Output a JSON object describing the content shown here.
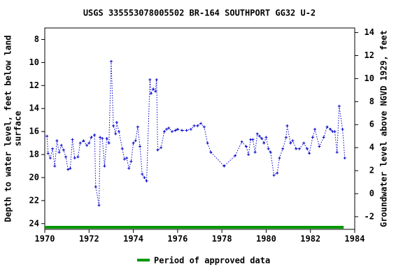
{
  "chart_data": {
    "type": "line",
    "title": "USGS 335553078005502 BR-164 SOUTHPORT GG32 U-2",
    "ylabel": [
      "Depth to water level, feet below land",
      "surface"
    ],
    "y2label": "Groundwater level above NGVD 1929, feet",
    "x": [
      1970.1,
      1970.15,
      1970.25,
      1970.35,
      1970.45,
      1970.55,
      1970.65,
      1970.75,
      1970.85,
      1970.95,
      1971.05,
      1971.15,
      1971.25,
      1971.35,
      1971.5,
      1971.6,
      1971.75,
      1971.9,
      1972.0,
      1972.1,
      1972.25,
      1972.3,
      1972.45,
      1972.5,
      1972.6,
      1972.7,
      1972.8,
      1972.9,
      1973.0,
      1973.1,
      1973.2,
      1973.25,
      1973.35,
      1973.5,
      1973.6,
      1973.7,
      1973.8,
      1973.9,
      1974.0,
      1974.1,
      1974.2,
      1974.3,
      1974.4,
      1974.5,
      1974.6,
      1974.75,
      1974.8,
      1974.9,
      1975.0,
      1975.05,
      1975.1,
      1975.25,
      1975.4,
      1975.5,
      1975.6,
      1975.75,
      1975.9,
      1976.0,
      1976.2,
      1976.4,
      1976.6,
      1976.75,
      1976.9,
      1977.05,
      1977.2,
      1977.35,
      1977.5,
      1978.1,
      1978.6,
      1978.9,
      1979.1,
      1979.2,
      1979.3,
      1979.4,
      1979.5,
      1979.6,
      1979.7,
      1979.8,
      1979.9,
      1980.0,
      1980.1,
      1980.2,
      1980.35,
      1980.5,
      1980.6,
      1980.75,
      1980.9,
      1980.95,
      1981.1,
      1981.2,
      1981.35,
      1981.5,
      1981.7,
      1981.85,
      1981.95,
      1982.1,
      1982.2,
      1982.4,
      1982.6,
      1982.75,
      1982.9,
      1983.0,
      1983.1,
      1983.2,
      1983.3,
      1983.45,
      1983.55
    ],
    "series": [
      {
        "color": "#0000cc",
        "values": [
          16.4,
          17.9,
          18.3,
          17.5,
          19.0,
          16.8,
          17.8,
          17.2,
          17.6,
          18.2,
          19.3,
          19.2,
          16.7,
          18.3,
          18.2,
          17.0,
          16.8,
          17.2,
          17.0,
          16.5,
          16.3,
          20.8,
          22.4,
          16.5,
          16.6,
          19.0,
          16.6,
          17.0,
          9.9,
          15.5,
          16.2,
          15.2,
          16.0,
          17.5,
          18.4,
          18.3,
          19.2,
          18.6,
          17.0,
          16.8,
          15.6,
          17.3,
          19.7,
          20.0,
          20.3,
          11.5,
          12.7,
          12.3,
          12.5,
          11.5,
          17.6,
          17.4,
          16.0,
          15.8,
          15.7,
          16.0,
          15.9,
          15.8,
          15.9,
          15.9,
          15.8,
          15.5,
          15.5,
          15.3,
          15.6,
          17.0,
          17.8,
          19.0,
          18.1,
          16.9,
          17.3,
          18.0,
          16.7,
          16.7,
          17.8,
          16.2,
          16.4,
          16.6,
          17.0,
          16.5,
          17.5,
          17.8,
          19.8,
          19.6,
          18.3,
          17.5,
          16.5,
          15.5,
          17.0,
          16.8,
          17.5,
          17.5,
          17.0,
          17.5,
          17.9,
          16.5,
          15.8,
          17.3,
          16.5,
          15.6,
          15.8,
          16.0,
          16.0,
          17.8,
          13.8,
          15.8,
          18.3
        ]
      }
    ],
    "xlim": [
      1970,
      1984
    ],
    "xticks": [
      1970,
      1972,
      1974,
      1976,
      1978,
      1980,
      1982,
      1984
    ],
    "ylim": [
      24.5,
      7
    ],
    "yticks": [
      8,
      10,
      12,
      14,
      16,
      18,
      20,
      22,
      24
    ],
    "y2lim": [
      -3.1,
      14.4
    ],
    "y2ticks": [
      -2,
      0,
      2,
      4,
      6,
      8,
      10,
      12,
      14
    ],
    "approved": {
      "name": "Period of approved data",
      "color": "#009900",
      "range": [
        1970,
        1983.5
      ]
    }
  }
}
